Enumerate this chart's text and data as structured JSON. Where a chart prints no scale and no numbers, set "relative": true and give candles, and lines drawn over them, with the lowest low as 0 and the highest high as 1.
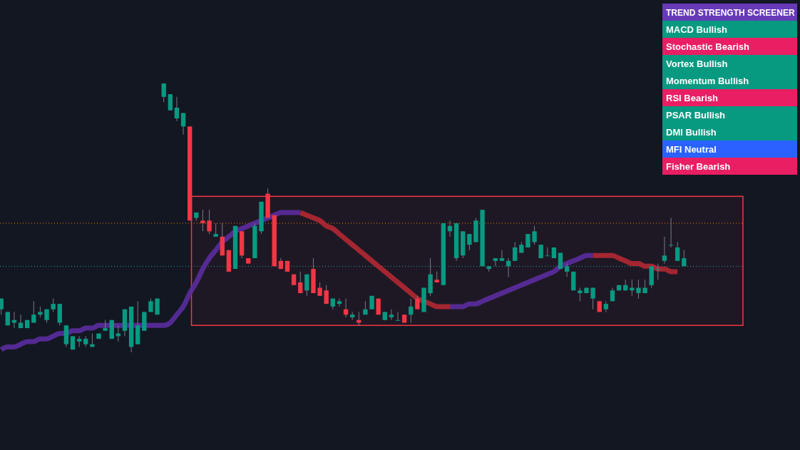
{
  "chart_data": [
    {
      "type": "candlestick",
      "relative": true,
      "categories": [
        null,
        null,
        null,
        null,
        null,
        null,
        null,
        null,
        null,
        null,
        null,
        null,
        null,
        null,
        null,
        null,
        null,
        null,
        null,
        null,
        null,
        null,
        null,
        null,
        null,
        null,
        null,
        null,
        null,
        null,
        null,
        null,
        null,
        null,
        null,
        null,
        null,
        null,
        null,
        null,
        null,
        null,
        null,
        null,
        null,
        null,
        null,
        null,
        null,
        null,
        null,
        null,
        null,
        null,
        null,
        null,
        null,
        null,
        null,
        null,
        null,
        null,
        null,
        null,
        null,
        null,
        null,
        null,
        null,
        null,
        null,
        null,
        null,
        null,
        null,
        null,
        null,
        null,
        null,
        null,
        null,
        null,
        null,
        null,
        null,
        null,
        null,
        null,
        null,
        null,
        null,
        null,
        null,
        null,
        null,
        null,
        null,
        null,
        null,
        null,
        null,
        null,
        null,
        null,
        null,
        null
      ],
      "ohlc": [
        [
          0.16,
          0.2,
          0.14,
          0.2
        ],
        [
          0.1,
          0.15,
          0.1,
          0.15
        ],
        [
          0.11,
          0.15,
          0.09,
          0.12
        ],
        [
          0.09,
          0.14,
          0.09,
          0.11
        ],
        [
          0.09,
          0.12,
          0.09,
          0.12
        ],
        [
          0.11,
          0.19,
          0.11,
          0.14
        ],
        [
          0.14,
          0.17,
          0.13,
          0.15
        ],
        [
          0.12,
          0.16,
          0.11,
          0.16
        ],
        [
          0.16,
          0.2,
          0.15,
          0.18
        ],
        [
          0.11,
          0.18,
          0.1,
          0.18
        ],
        [
          0.03,
          0.1,
          0.02,
          0.1
        ],
        [
          0.01,
          0.06,
          0.01,
          0.06
        ],
        [
          0.04,
          0.06,
          0.02,
          0.05
        ],
        [
          0.03,
          0.06,
          0.02,
          0.05
        ],
        [
          0.02,
          0.07,
          0.02,
          0.03
        ],
        [
          0.05,
          0.07,
          0.05,
          0.07
        ],
        [
          0.08,
          0.12,
          0.08,
          0.09
        ],
        [
          0.05,
          0.12,
          0.05,
          0.12
        ],
        [
          0.06,
          0.1,
          0.04,
          0.07
        ],
        [
          0.08,
          0.16,
          0.06,
          0.16
        ],
        [
          0.02,
          0.17,
          0,
          0.17
        ],
        [
          0.03,
          0.19,
          0.03,
          0.1
        ],
        [
          0.08,
          0.15,
          0.08,
          0.15
        ],
        [
          0.15,
          0.2,
          0.15,
          0.19
        ],
        [
          0.14,
          0.2,
          0.14,
          0.2
        ],
        [
          0.95,
          1,
          0.93,
          1
        ],
        [
          0.9,
          0.96,
          0.9,
          0.96
        ],
        [
          0.87,
          0.95,
          0.86,
          0.91
        ],
        [
          0.84,
          0.89,
          0.81,
          0.89
        ],
        [
          0.84,
          0.84,
          0.49,
          0.49
        ],
        [
          0.5,
          0.52,
          0.49,
          0.52
        ],
        [
          0.49,
          0.53,
          0.45,
          0.48
        ],
        [
          0.49,
          0.53,
          0.44,
          0.45
        ],
        [
          0.43,
          0.48,
          0.43,
          0.44
        ],
        [
          0.43,
          0.48,
          0.36,
          0.36
        ],
        [
          0.38,
          0.38,
          0.3,
          0.3
        ],
        [
          0.31,
          0.47,
          0.31,
          0.47
        ],
        [
          0.45,
          0.45,
          0.35,
          0.36
        ],
        [
          0.35,
          0.35,
          0.33,
          0.33
        ],
        [
          0.35,
          0.48,
          0.35,
          0.47
        ],
        [
          0.45,
          0.56,
          0.44,
          0.56
        ],
        [
          0.59,
          0.61,
          0.5,
          0.5
        ],
        [
          0.51,
          0.51,
          0.32,
          0.32
        ],
        [
          0.34,
          0.35,
          0.31,
          0.31
        ],
        [
          0.34,
          0.34,
          0.3,
          0.3
        ],
        [
          0.29,
          0.29,
          0.25,
          0.25
        ],
        [
          0.26,
          0.3,
          0.22,
          0.22
        ],
        [
          0.23,
          0.29,
          0.21,
          0.29
        ],
        [
          0.31,
          0.35,
          0.22,
          0.22
        ],
        [
          0.24,
          0.26,
          0.21,
          0.21
        ],
        [
          0.23,
          0.25,
          0.18,
          0.18
        ],
        [
          0.17,
          0.2,
          0.16,
          0.2
        ],
        [
          0.18,
          0.2,
          0.17,
          0.19
        ],
        [
          0.16,
          0.2,
          0.13,
          0.14
        ],
        [
          0.13,
          0.15,
          0.12,
          0.14
        ],
        [
          0.12,
          0.15,
          0.1,
          0.11
        ],
        [
          0.14,
          0.19,
          0.14,
          0.16
        ],
        [
          0.16,
          0.21,
          0.16,
          0.21
        ],
        [
          0.2,
          0.2,
          0.14,
          0.14
        ],
        [
          0.12,
          0.15,
          0.12,
          0.15
        ],
        [
          0.13,
          0.16,
          0.12,
          0.14
        ],
        [
          0.12,
          0.15,
          0.12,
          0.12
        ],
        [
          0.14,
          0.14,
          0.11,
          0.11
        ],
        [
          0.14,
          0.2,
          0.11,
          0.17
        ],
        [
          0.2,
          0.21,
          0.16,
          0.16
        ],
        [
          0.15,
          0.24,
          0.15,
          0.24
        ],
        [
          0.22,
          0.35,
          0.21,
          0.29
        ],
        [
          0.27,
          0.3,
          0.26,
          0.26
        ],
        [
          0.25,
          0.48,
          0.25,
          0.48
        ],
        [
          0.45,
          0.49,
          0.43,
          0.47
        ],
        [
          0.35,
          0.48,
          0.34,
          0.48
        ],
        [
          0.36,
          0.45,
          0.35,
          0.45
        ],
        [
          0.4,
          0.44,
          0.38,
          0.44
        ],
        [
          0.41,
          0.5,
          0.41,
          0.49
        ],
        [
          0.32,
          0.53,
          0.32,
          0.53
        ],
        [
          0.31,
          0.32,
          0.3,
          0.32
        ],
        [
          0.34,
          0.35,
          0.32,
          0.35
        ],
        [
          0.34,
          0.38,
          0.34,
          0.35
        ],
        [
          0.32,
          0.35,
          0.28,
          0.34
        ],
        [
          0.34,
          0.41,
          0.34,
          0.39
        ],
        [
          0.37,
          0.41,
          0.37,
          0.4
        ],
        [
          0.39,
          0.44,
          0.39,
          0.44
        ],
        [
          0.41,
          0.47,
          0.4,
          0.45
        ],
        [
          0.35,
          0.4,
          0.35,
          0.4
        ],
        [
          0.36,
          0.39,
          0.36,
          0.36
        ],
        [
          0.35,
          0.39,
          0.35,
          0.39
        ],
        [
          0.31,
          0.37,
          0.31,
          0.37
        ],
        [
          0.3,
          0.33,
          0.28,
          0.32
        ],
        [
          0.23,
          0.3,
          0.23,
          0.3
        ],
        [
          0.22,
          0.24,
          0.19,
          0.23
        ],
        [
          0.22,
          0.24,
          0.22,
          0.24
        ],
        [
          0.2,
          0.24,
          0.16,
          0.24
        ],
        [
          0.19,
          0.19,
          0.15,
          0.15
        ],
        [
          0.16,
          0.19,
          0.15,
          0.18
        ],
        [
          0.19,
          0.24,
          0.19,
          0.23
        ],
        [
          0.23,
          0.25,
          0.23,
          0.25
        ],
        [
          0.23,
          0.27,
          0.23,
          0.25
        ],
        [
          0.23,
          0.27,
          0.21,
          0.24
        ],
        [
          0.22,
          0.27,
          0.2,
          0.24
        ],
        [
          0.22,
          0.27,
          0.22,
          0.24
        ],
        [
          0.25,
          0.32,
          0.24,
          0.32
        ],
        [
          0.31,
          0.33,
          0.27,
          0.31
        ],
        [
          0.34,
          0.43,
          0.33,
          0.36
        ],
        [
          0.4,
          0.5,
          0.39,
          0.4
        ],
        [
          0.34,
          0.41,
          0.34,
          0.39
        ],
        [
          0.32,
          0.38,
          0.32,
          0.35
        ]
      ],
      "colors": [
        "#089981",
        "#089981",
        "#089981",
        "#089981",
        "#089981",
        "#089981",
        "#089981",
        "#089981",
        "#089981",
        "#089981",
        "#089981",
        "#089981",
        "#089981",
        "#089981",
        "#089981",
        "#089981",
        "#089981",
        "#089981",
        "#089981",
        "#089981",
        "#089981",
        "#089981",
        "#089981",
        "#089981",
        "#089981",
        "#089981",
        "#089981",
        "#089981",
        "#089981",
        "#f23645",
        "#089981",
        "#f23645",
        "#f23645",
        "#089981",
        "#f23645",
        "#f23645",
        "#089981",
        "#f23645",
        "#f23645",
        "#089981",
        "#089981",
        "#f23645",
        "#f23645",
        "#f23645",
        "#f23645",
        "#f23645",
        "#f23645",
        "#089981",
        "#f23645",
        "#f23645",
        "#f23645",
        "#089981",
        "#089981",
        "#f23645",
        "#089981",
        "#f23645",
        "#089981",
        "#089981",
        "#f23645",
        "#089981",
        "#089981",
        "#089981",
        "#f23645",
        "#089981",
        "#f23645",
        "#089981",
        "#089981",
        "#f23645",
        "#089981",
        "#089981",
        "#089981",
        "#089981",
        "#089981",
        "#089981",
        "#089981",
        "#089981",
        "#089981",
        "#089981",
        "#089981",
        "#089981",
        "#089981",
        "#089981",
        "#089981",
        "#089981",
        "#089981",
        "#089981",
        "#089981",
        "#089981",
        "#089981",
        "#089981",
        "#089981",
        "#089981",
        "#f23645",
        "#089981",
        "#089981",
        "#089981",
        "#089981",
        "#089981",
        "#089981",
        "#089981",
        "#089981",
        "#089981",
        "#089981",
        "#089981",
        "#089981",
        "#089981"
      ],
      "series": [
        {
          "type": "line",
          "color": "#5b2c9e",
          "values": [
            0.01,
            0.02,
            0.02,
            0.03,
            0.04,
            0.04,
            0.05,
            0.05,
            0.06,
            0.07,
            0.07,
            0.08,
            0.08,
            0.09,
            0.09,
            0.1,
            0.1,
            0.1,
            0.1,
            0.1,
            0.1,
            0.1,
            0.1,
            0.1,
            0.1,
            0.1,
            0.11,
            0.14,
            0.17,
            0.22,
            0.26,
            0.31,
            0.35,
            0.38,
            0.41,
            0.43,
            0.45,
            0.46,
            0.47,
            0.48,
            0.49,
            0.5,
            0.51,
            0.52,
            0.52,
            0.52,
            0.52,
            null,
            null,
            null,
            null,
            null,
            null,
            null,
            null,
            null,
            null,
            null,
            null,
            null,
            null,
            null,
            null,
            null,
            null,
            null,
            null,
            null,
            null,
            0.17,
            0.17,
            0.17,
            0.18,
            0.18,
            0.19,
            0.2,
            0.21,
            0.22,
            0.23,
            0.24,
            0.25,
            0.26,
            0.27,
            0.28,
            0.29,
            0.3,
            0.32,
            0.33,
            0.34,
            0.35,
            0.36,
            0.36,
            null,
            null,
            null,
            null,
            null,
            null,
            null,
            null,
            null,
            null,
            null,
            null,
            null,
            null
          ]
        },
        {
          "type": "line",
          "color": "#b22833",
          "values": [
            null,
            null,
            null,
            null,
            null,
            null,
            null,
            null,
            null,
            null,
            null,
            null,
            null,
            null,
            null,
            null,
            null,
            null,
            null,
            null,
            null,
            null,
            null,
            null,
            null,
            null,
            null,
            null,
            null,
            null,
            null,
            null,
            null,
            null,
            null,
            null,
            null,
            null,
            null,
            null,
            null,
            null,
            null,
            null,
            null,
            null,
            0.52,
            0.51,
            0.5,
            0.49,
            0.47,
            0.46,
            0.44,
            0.42,
            0.4,
            0.38,
            0.36,
            0.34,
            0.32,
            0.3,
            0.28,
            0.26,
            0.24,
            0.22,
            0.2,
            0.19,
            0.18,
            0.17,
            0.17,
            0.17,
            null,
            null,
            null,
            null,
            null,
            null,
            null,
            null,
            null,
            null,
            null,
            null,
            null,
            null,
            null,
            null,
            null,
            null,
            null,
            null,
            null,
            0.36,
            0.36,
            0.36,
            0.36,
            0.35,
            0.34,
            0.33,
            0.33,
            0.32,
            0.32,
            0.31,
            0.31,
            0.3,
            0.3,
            null
          ]
        }
      ],
      "ref_lines": [
        {
          "axis": "y",
          "value": 0.48,
          "color": "#f57c00",
          "line_style": "dotted"
        },
        {
          "axis": "y",
          "value": 0.32,
          "color": "#26a69a",
          "line_style": "dotted"
        }
      ],
      "bands": [
        {
          "axis": "y",
          "from": 0.1,
          "to": 0.58,
          "color": "#f23645"
        }
      ]
    },
    {
      "type": "other",
      "title": "TREND STRENGTH SCREENER",
      "color": "#673ab7",
      "categories": [
        "MACD Bullish",
        "Stochastic Bearish",
        "Vortex Bullish",
        "Momentum Bullish",
        "RSI Bearish",
        "PSAR Bullish",
        "DMI Bullish",
        "MFI Neutral",
        "Fisher Bearish"
      ],
      "colors": [
        "#089981",
        "#e91e63",
        "#089981",
        "#089981",
        "#e91e63",
        "#089981",
        "#089981",
        "#2962ff",
        "#e91e63"
      ]
    }
  ]
}
